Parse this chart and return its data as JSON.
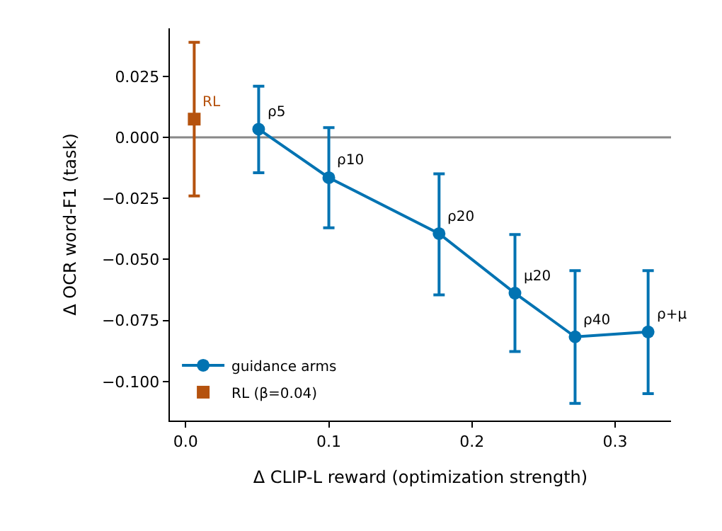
{
  "chart_data": {
    "type": "line",
    "xlabel": "Δ CLIP-L reward (optimization strength)",
    "ylabel": "Δ OCR word-F1 (task)",
    "xlim": [
      -0.011,
      0.339
    ],
    "xticks": [
      {
        "value": 0,
        "label": "0.0"
      },
      0.1,
      0.2,
      0.3
    ],
    "ylim": [
      -0.116,
      0.0447
    ],
    "yticks": [
      {
        "value": 0.025,
        "label": "0.025"
      },
      {
        "value": 0,
        "label": "0.000"
      },
      {
        "value": -0.025,
        "label": "−0.025"
      },
      {
        "value": -0.05,
        "label": "−0.050"
      },
      {
        "value": -0.075,
        "label": "−0.075"
      },
      {
        "value": -0.1,
        "label": "−0.100"
      }
    ],
    "grid": false,
    "legend": "bottom left",
    "series": [
      {
        "name": "guidance arms",
        "marker": "circle",
        "color": "#0173b2",
        "x": [
          0.051,
          0.1,
          0.177,
          0.23,
          0.272,
          0.323
        ],
        "values": [
          0.0034,
          -0.0165,
          -0.0394,
          -0.0638,
          -0.0817,
          -0.0797
        ],
        "errors": [
          [
            -0.0145,
            0.021
          ],
          [
            -0.037,
            0.004
          ],
          [
            -0.0645,
            -0.0149
          ],
          [
            -0.0877,
            -0.0398
          ],
          [
            -0.109,
            -0.0546
          ],
          [
            -0.105,
            -0.0546
          ]
        ]
      },
      {
        "name": "RL (β=0.04)",
        "type": "scatter",
        "marker": "square",
        "color": "#b5520e",
        "x": [
          0.006
        ],
        "values": [
          0.0075
        ],
        "errors": [
          [
            -0.024,
            0.039
          ]
        ]
      }
    ],
    "ref_lines": [
      {
        "axis": "y",
        "value": 0,
        "color": "#888888"
      }
    ],
    "annotations": [
      {
        "text": "ρ5",
        "x": 0.051,
        "y": 0.0034
      },
      {
        "text": "ρ10",
        "x": 0.1,
        "y": -0.0165
      },
      {
        "text": "ρ20",
        "x": 0.177,
        "y": -0.0394
      },
      {
        "text": "μ20",
        "x": 0.23,
        "y": -0.0638
      },
      {
        "text": "ρ40",
        "x": 0.272,
        "y": -0.0817
      },
      {
        "text": "ρ+μ",
        "x": 0.323,
        "y": -0.0797
      },
      {
        "text": "RL",
        "x": 0.006,
        "y": 0.0075
      }
    ]
  }
}
